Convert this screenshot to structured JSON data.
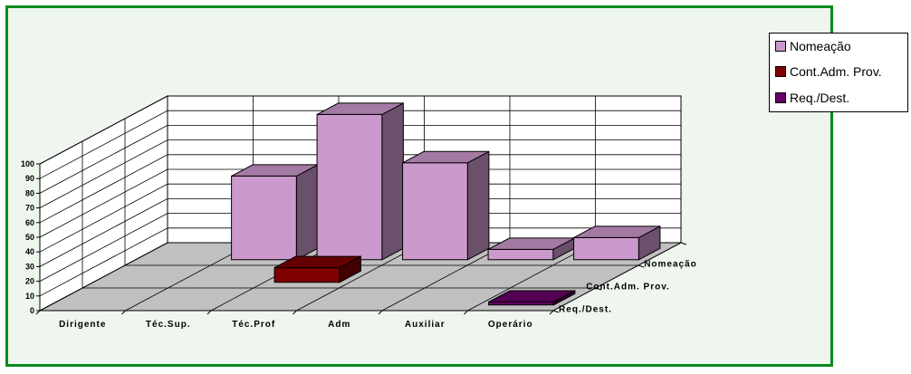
{
  "chart_data": {
    "type": "bar",
    "subtype": "3d-column",
    "categories": [
      "Dirigente",
      "Téc.Sup.",
      "Téc.Prof",
      "Adm",
      "Auxiliar",
      "Operário"
    ],
    "series": [
      {
        "name": "Nomeação",
        "values": [
          0,
          57,
          99,
          66,
          7,
          15
        ],
        "color": "#cc99cc"
      },
      {
        "name": "Cont.Adm. Prov.",
        "values": [
          0,
          0,
          10,
          0,
          0,
          0
        ],
        "color": "#800000"
      },
      {
        "name": "Req./Dest.",
        "values": [
          0,
          0,
          0,
          0,
          0,
          2
        ],
        "color": "#660066"
      }
    ],
    "depth_labels": [
      "Nomeação",
      "Cont.Adm. Prov.",
      "Req./Dest."
    ],
    "ylim": [
      0,
      100
    ],
    "yticks": [
      "0",
      "10",
      "20",
      "30",
      "40",
      "50",
      "60",
      "70",
      "80",
      "90",
      "100"
    ],
    "grid": true,
    "legend_position": "top-right",
    "frame_color": "#0a8a1e"
  }
}
